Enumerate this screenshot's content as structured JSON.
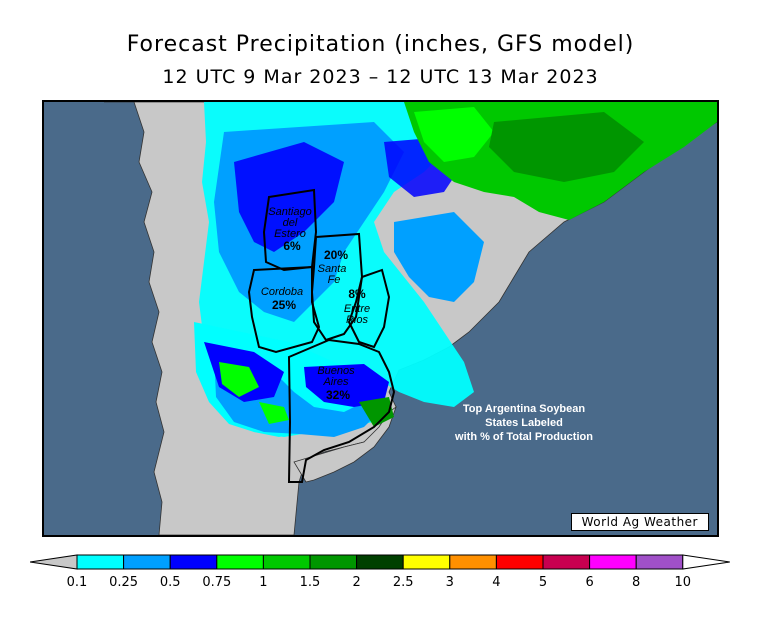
{
  "title": "Forecast Precipitation (inches, GFS model)",
  "subtitle": "12 UTC 9 Mar 2023 – 12 UTC 13 Mar 2023",
  "states": [
    {
      "name_lines": [
        "Santiago",
        "del",
        "Estero"
      ],
      "pct": "6%"
    },
    {
      "name_lines": [
        "Santa",
        "Fe"
      ],
      "pct": "20%"
    },
    {
      "name_lines": [
        "Cordoba"
      ],
      "pct": "25%"
    },
    {
      "name_lines": [
        "Entre",
        "Rios"
      ],
      "pct": "8%"
    },
    {
      "name_lines": [
        "Buenos",
        "Aires"
      ],
      "pct": "32%"
    }
  ],
  "note_lines": [
    "Top Argentina Soybean",
    "States Labeled",
    "with % of Total Production"
  ],
  "credit": "World Ag Weather",
  "legend": {
    "colors": [
      "#00ffff",
      "#00a0ff",
      "#0000ff",
      "#00ff00",
      "#00c800",
      "#009600",
      "#004000",
      "#ffff00",
      "#ff9000",
      "#ff0000",
      "#c80050",
      "#ff00ff",
      "#a050c8"
    ],
    "ticks": [
      "0.1",
      "0.25",
      "0.5",
      "0.75",
      "1",
      "1.5",
      "2",
      "2.5",
      "3",
      "4",
      "5",
      "6",
      "8",
      "10"
    ]
  },
  "colors": {
    "ocean": "#4a6a8a",
    "land_dry": "#c8c8c8"
  }
}
